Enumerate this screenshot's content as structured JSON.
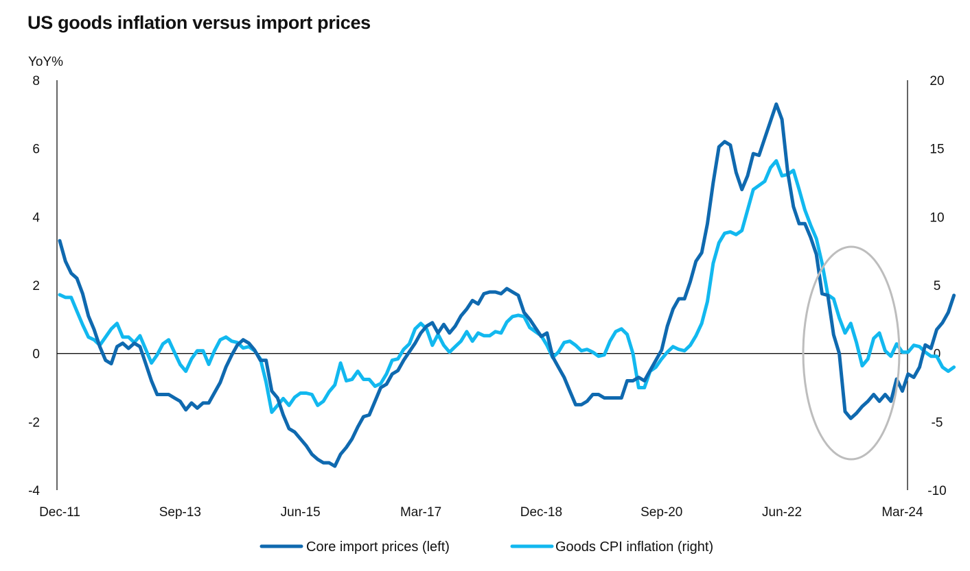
{
  "title": "US goods inflation versus import prices",
  "chart_data": {
    "type": "line",
    "title": "US goods inflation versus import prices",
    "y_left_unit": "YoY%",
    "y_left_lim": [
      -4,
      8
    ],
    "y_left_ticks": [
      "8",
      "6",
      "4",
      "2",
      "0",
      "-2",
      "-4"
    ],
    "y_right_lim": [
      -10,
      20
    ],
    "y_right_ticks": [
      "20",
      "15",
      "10",
      "5",
      "0",
      "-5",
      "-10"
    ],
    "x_ticks": [
      "Dec-11",
      "Sep-13",
      "Jun-15",
      "Mar-17",
      "Dec-18",
      "Sep-20",
      "Jun-22",
      "Mar-24"
    ],
    "x_start": "2011-12",
    "grid": false,
    "legend_position": "bottom",
    "highlight": "ellipse around Mar-24 period",
    "colors": {
      "core": "#0f69af",
      "goods": "#12b8ef",
      "axis": "#111111",
      "highlight": "#bdbdbd"
    },
    "series": [
      {
        "name": "Core import prices (left)",
        "axis": "left",
        "color": "#0f69af",
        "values": [
          3.3,
          2.7,
          2.35,
          2.2,
          1.75,
          1.1,
          0.7,
          0.2,
          -0.2,
          -0.3,
          0.2,
          0.3,
          0.15,
          0.3,
          0.2,
          -0.3,
          -0.8,
          -1.2,
          -1.2,
          -1.2,
          -1.3,
          -1.4,
          -1.65,
          -1.45,
          -1.6,
          -1.45,
          -1.45,
          -1.15,
          -0.85,
          -0.4,
          -0.05,
          0.25,
          0.4,
          0.3,
          0.1,
          -0.2,
          -0.2,
          -1.1,
          -1.3,
          -1.8,
          -2.2,
          -2.3,
          -2.5,
          -2.7,
          -2.95,
          -3.1,
          -3.2,
          -3.2,
          -3.3,
          -2.95,
          -2.75,
          -2.5,
          -2.15,
          -1.85,
          -1.8,
          -1.4,
          -1.0,
          -0.9,
          -0.6,
          -0.5,
          -0.2,
          0.05,
          0.3,
          0.6,
          0.8,
          0.9,
          0.6,
          0.85,
          0.6,
          0.8,
          1.1,
          1.3,
          1.55,
          1.45,
          1.75,
          1.8,
          1.8,
          1.75,
          1.9,
          1.8,
          1.7,
          1.2,
          1.0,
          0.75,
          0.5,
          0.6,
          -0.1,
          -0.4,
          -0.7,
          -1.1,
          -1.5,
          -1.5,
          -1.4,
          -1.2,
          -1.2,
          -1.3,
          -1.3,
          -1.3,
          -1.3,
          -0.8,
          -0.8,
          -0.7,
          -0.8,
          -0.5,
          -0.2,
          0.1,
          0.8,
          1.3,
          1.6,
          1.6,
          2.1,
          2.7,
          2.95,
          3.8,
          5.0,
          6.05,
          6.2,
          6.1,
          5.3,
          4.8,
          5.2,
          5.85,
          5.8,
          6.3,
          6.8,
          7.3,
          6.85,
          5.3,
          4.3,
          3.8,
          3.8,
          3.4,
          2.9,
          1.75,
          1.7,
          0.55,
          0.0,
          -1.7,
          -1.9,
          -1.75,
          -1.55,
          -1.4,
          -1.2,
          -1.4,
          -1.2,
          -1.4,
          -0.75,
          -1.1,
          -0.6,
          -0.7,
          -0.4,
          0.25,
          0.15,
          0.7,
          0.9,
          1.2,
          1.7
        ]
      },
      {
        "name": "Goods CPI inflation (right)",
        "axis": "right",
        "color": "#12b8ef",
        "values": [
          4.3,
          4.1,
          4.1,
          3.1,
          2.1,
          1.2,
          1.0,
          0.6,
          1.2,
          1.8,
          2.2,
          1.2,
          1.2,
          0.8,
          1.3,
          0.3,
          -0.7,
          -0.1,
          0.7,
          1.0,
          0.1,
          -0.8,
          -1.3,
          -0.4,
          0.2,
          0.2,
          -0.8,
          0.2,
          1.0,
          1.2,
          0.9,
          0.8,
          0.4,
          0.5,
          0.2,
          -0.4,
          -2.1,
          -4.3,
          -3.8,
          -3.3,
          -3.8,
          -3.2,
          -2.9,
          -2.9,
          -3.0,
          -3.8,
          -3.5,
          -2.8,
          -2.3,
          -0.7,
          -2.0,
          -1.9,
          -1.3,
          -1.9,
          -1.9,
          -2.4,
          -2.2,
          -1.5,
          -0.5,
          -0.4,
          0.3,
          0.7,
          1.8,
          2.2,
          1.8,
          0.6,
          1.4,
          0.6,
          0.1,
          0.5,
          0.9,
          1.6,
          0.9,
          1.5,
          1.3,
          1.3,
          1.6,
          1.5,
          2.3,
          2.7,
          2.8,
          2.7,
          1.9,
          1.6,
          1.3,
          0.6,
          -0.3,
          0.1,
          0.8,
          0.9,
          0.6,
          0.2,
          0.3,
          0.1,
          -0.2,
          -0.1,
          0.9,
          1.6,
          1.8,
          1.4,
          0.0,
          -2.5,
          -2.5,
          -1.3,
          -1.0,
          -0.4,
          0.1,
          0.5,
          0.3,
          0.2,
          0.6,
          1.3,
          2.2,
          3.8,
          6.6,
          8.1,
          8.8,
          8.9,
          8.7,
          9.0,
          10.5,
          12.0,
          12.3,
          12.6,
          13.6,
          14.1,
          13.0,
          13.1,
          13.4,
          12.0,
          10.5,
          9.4,
          8.4,
          6.6,
          4.3,
          4.0,
          2.6,
          1.5,
          2.2,
          0.8,
          -0.9,
          -0.4,
          1.1,
          1.5,
          0.2,
          -0.2,
          0.7,
          0.1,
          0.1,
          0.6,
          0.5,
          0.1,
          -0.2,
          -0.2,
          -1.0,
          -1.3,
          -1.0
        ]
      }
    ]
  },
  "legend": {
    "core": "Core import prices (left)",
    "goods": "Goods CPI inflation (right)"
  }
}
